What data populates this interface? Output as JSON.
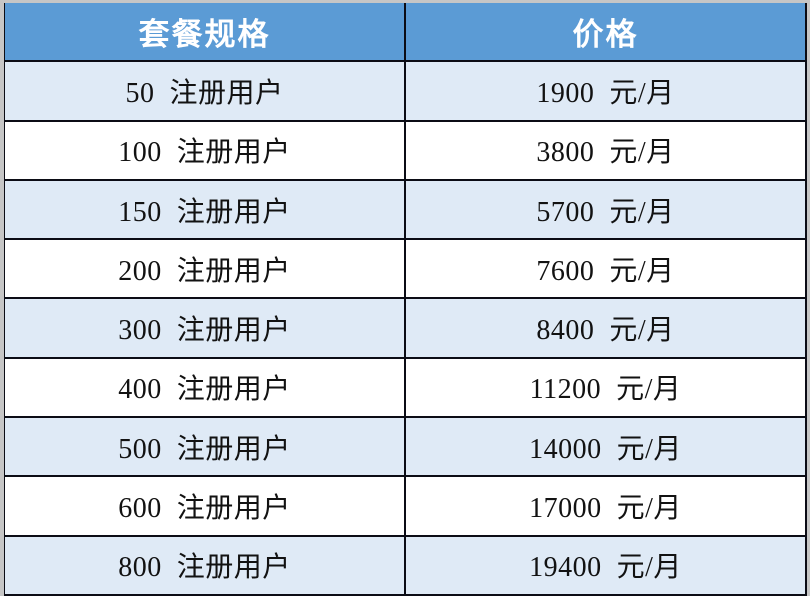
{
  "colors": {
    "header_bg": "#5b9bd5",
    "header_text": "#ffffff",
    "alt_row_bg": "#dfeaf6",
    "white_row_bg": "#ffffff",
    "border": "#0b0c15",
    "outer_margin": "#c6c6c6",
    "body_text": "#121212"
  },
  "table": {
    "header": {
      "spec": "套餐规格",
      "price": "价格"
    },
    "rows": [
      {
        "spec": "50  注册用户",
        "price": "1900  元/月"
      },
      {
        "spec": "100  注册用户",
        "price": "3800  元/月"
      },
      {
        "spec": "150  注册用户",
        "price": "5700  元/月"
      },
      {
        "spec": "200  注册用户",
        "price": "7600  元/月"
      },
      {
        "spec": "300  注册用户",
        "price": "8400  元/月"
      },
      {
        "spec": "400  注册用户",
        "price": "11200  元/月"
      },
      {
        "spec": "500  注册用户",
        "price": "14000  元/月"
      },
      {
        "spec": "600  注册用户",
        "price": "17000  元/月"
      },
      {
        "spec": "800  注册用户",
        "price": "19400  元/月"
      }
    ]
  },
  "chart_data": {
    "type": "table",
    "title": "",
    "columns": [
      "套餐规格",
      "价格"
    ],
    "rows": [
      [
        "50 注册用户",
        "1900 元/月"
      ],
      [
        "100 注册用户",
        "3800 元/月"
      ],
      [
        "150 注册用户",
        "5700 元/月"
      ],
      [
        "200 注册用户",
        "7600 元/月"
      ],
      [
        "300 注册用户",
        "8400 元/月"
      ],
      [
        "400 注册用户",
        "11200 元/月"
      ],
      [
        "500 注册用户",
        "14000 元/月"
      ],
      [
        "600 注册用户",
        "17000 元/月"
      ],
      [
        "800 注册用户",
        "19400 元/月"
      ]
    ],
    "registered_users": [
      50,
      100,
      150,
      200,
      300,
      400,
      500,
      600,
      800
    ],
    "price_per_month_yuan": [
      1900,
      3800,
      5700,
      7600,
      8400,
      11200,
      14000,
      17000,
      19400
    ],
    "layout_hints": {
      "header_style": "blue background, white bold text",
      "row_striping": "odd data rows light blue, even data rows white",
      "alignment": "center"
    }
  }
}
